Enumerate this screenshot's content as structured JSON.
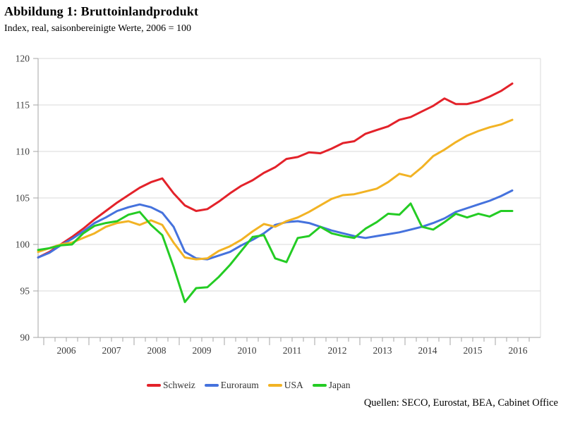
{
  "title": "Abbildung 1: Bruttoinlandprodukt",
  "subtitle": "Index, real, saisonbereinigte Werte, 2006 = 100",
  "source": "Quellen: SECO, Eurostat, BEA, Cabinet Office",
  "colors": {
    "grid": "#d9d9d9",
    "axis": "#a6a6a6",
    "tick_text": "#3c3c3c"
  },
  "chart_data": {
    "type": "line",
    "title": "Abbildung 1: Bruttoinlandprodukt",
    "subtitle": "Index, real, saisonbereinigte Werte, 2006 = 100",
    "xlabel": "",
    "ylabel": "",
    "x_unit": "quarter",
    "x_start_year_quarter": "2005Q4",
    "x_end_year_quarter": "2016Q2",
    "x_tick_labels": [
      "2006",
      "2007",
      "2008",
      "2009",
      "2010",
      "2011",
      "2012",
      "2013",
      "2014",
      "2015",
      "2016"
    ],
    "ylim": [
      90,
      120
    ],
    "y_ticks": [
      90,
      95,
      100,
      105,
      110,
      115,
      120
    ],
    "grid": "horizontal",
    "legend_position": "bottom",
    "series": [
      {
        "name": "Schweiz",
        "color": "#e3222a",
        "values": [
          98.6,
          99.2,
          100.0,
          100.8,
          101.7,
          102.7,
          103.6,
          104.5,
          105.3,
          106.1,
          106.7,
          107.1,
          105.5,
          104.2,
          103.6,
          103.8,
          104.6,
          105.5,
          106.3,
          106.9,
          107.7,
          108.3,
          109.2,
          109.4,
          109.9,
          109.8,
          110.3,
          110.9,
          111.1,
          111.9,
          112.3,
          112.7,
          113.4,
          113.7,
          114.3,
          114.9,
          115.7,
          115.1,
          115.1,
          115.4,
          115.9,
          116.5,
          117.3
        ]
      },
      {
        "name": "Euroraum",
        "color": "#4572dd",
        "values": [
          98.6,
          99.1,
          99.9,
          100.6,
          101.4,
          102.3,
          102.9,
          103.6,
          104.0,
          104.3,
          104.0,
          103.4,
          101.9,
          99.2,
          98.5,
          98.4,
          98.8,
          99.2,
          99.9,
          100.5,
          101.2,
          102.1,
          102.4,
          102.5,
          102.3,
          101.9,
          101.5,
          101.2,
          100.9,
          100.7,
          100.9,
          101.1,
          101.3,
          101.6,
          101.9,
          102.3,
          102.8,
          103.5,
          103.9,
          104.3,
          104.7,
          105.2,
          105.8
        ]
      },
      {
        "name": "USA",
        "color": "#f2b324",
        "values": [
          99.2,
          99.6,
          100.0,
          100.2,
          100.7,
          101.2,
          101.9,
          102.3,
          102.5,
          102.1,
          102.6,
          102.1,
          100.2,
          98.6,
          98.4,
          98.5,
          99.3,
          99.8,
          100.5,
          101.4,
          102.2,
          101.9,
          102.5,
          102.9,
          103.5,
          104.2,
          104.9,
          105.3,
          105.4,
          105.7,
          106.0,
          106.7,
          107.6,
          107.3,
          108.3,
          109.5,
          110.2,
          111.0,
          111.7,
          112.2,
          112.6,
          112.9,
          113.4
        ]
      },
      {
        "name": "Japan",
        "color": "#24cc24",
        "values": [
          99.4,
          99.6,
          99.9,
          100.0,
          101.2,
          102.0,
          102.3,
          102.5,
          103.2,
          103.5,
          102.1,
          101.0,
          97.6,
          93.8,
          95.3,
          95.4,
          96.5,
          97.8,
          99.3,
          100.8,
          101.0,
          98.5,
          98.1,
          100.7,
          100.9,
          101.9,
          101.2,
          100.9,
          100.7,
          101.7,
          102.4,
          103.3,
          103.2,
          104.4,
          101.9,
          101.6,
          102.4,
          103.3,
          102.9,
          103.3,
          103.0,
          103.6,
          103.6
        ]
      }
    ]
  }
}
